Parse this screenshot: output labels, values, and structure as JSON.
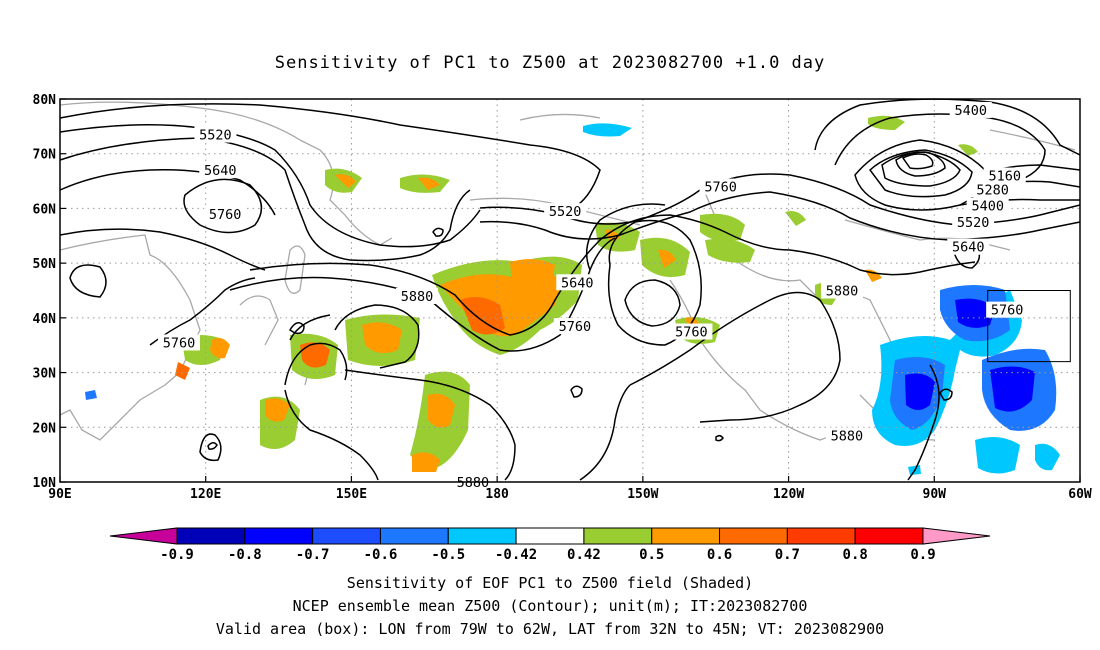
{
  "title": "Sensitivity of PC1 to Z500 at 2023082700 +1.0 day",
  "map": {
    "lon_range": [
      90,
      300
    ],
    "lat_range": [
      10,
      80
    ],
    "lat_ticks": [
      {
        "value": 80,
        "label": "80N"
      },
      {
        "value": 70,
        "label": "70N"
      },
      {
        "value": 60,
        "label": "60N"
      },
      {
        "value": 50,
        "label": "50N"
      },
      {
        "value": 40,
        "label": "40N"
      },
      {
        "value": 30,
        "label": "30N"
      },
      {
        "value": 20,
        "label": "20N"
      },
      {
        "value": 10,
        "label": "10N"
      }
    ],
    "lon_ticks": [
      {
        "value": 90,
        "label": "90E"
      },
      {
        "value": 120,
        "label": "120E"
      },
      {
        "value": 150,
        "label": "150E"
      },
      {
        "value": 180,
        "label": "180"
      },
      {
        "value": 210,
        "label": "150W"
      },
      {
        "value": 240,
        "label": "120W"
      },
      {
        "value": 270,
        "label": "90W"
      },
      {
        "value": 300,
        "label": "60W"
      }
    ],
    "gridlines": "dotted",
    "valid_box": {
      "lon": [
        281,
        298
      ],
      "lat": [
        32,
        45
      ]
    },
    "contour_labels": [
      {
        "text": "5520",
        "lon": 122,
        "lat": 73.5
      },
      {
        "text": "5640",
        "lon": 123,
        "lat": 67
      },
      {
        "text": "5760",
        "lon": 124,
        "lat": 59
      },
      {
        "text": "5520",
        "lon": 194,
        "lat": 59.5
      },
      {
        "text": "5760",
        "lon": 226,
        "lat": 64
      },
      {
        "text": "5400",
        "lon": 277.5,
        "lat": 78
      },
      {
        "text": "5160",
        "lon": 284.5,
        "lat": 66
      },
      {
        "text": "5280",
        "lon": 282,
        "lat": 63.5
      },
      {
        "text": "5400",
        "lon": 281,
        "lat": 60.5
      },
      {
        "text": "5520",
        "lon": 278,
        "lat": 57.5
      },
      {
        "text": "5640",
        "lon": 277,
        "lat": 53
      },
      {
        "text": "5640",
        "lon": 196.5,
        "lat": 46.5
      },
      {
        "text": "5880",
        "lon": 163.5,
        "lat": 44
      },
      {
        "text": "5760",
        "lon": 196,
        "lat": 38.5
      },
      {
        "text": "5760",
        "lon": 220,
        "lat": 37.5
      },
      {
        "text": "5880",
        "lon": 251,
        "lat": 45
      },
      {
        "text": "5760",
        "lon": 114.5,
        "lat": 35.5
      },
      {
        "text": "5760",
        "lon": 285,
        "lat": 41.5
      },
      {
        "text": "5880",
        "lon": 252,
        "lat": 18.5
      },
      {
        "text": "5880",
        "lon": 175,
        "lat": 10
      }
    ]
  },
  "colorbar": {
    "colors": [
      "#c8009a",
      "#0000b8",
      "#0000ff",
      "#1e4cff",
      "#1e78ff",
      "#00c8ff",
      "#ffffff",
      "#9acd32",
      "#ff9a00",
      "#ff6a00",
      "#ff3c00",
      "#ff0000",
      "#ff9ac8"
    ],
    "labels": [
      "-0.9",
      "-0.8",
      "-0.7",
      "-0.6",
      "-0.5",
      "-0.42",
      "0.42",
      "0.5",
      "0.6",
      "0.7",
      "0.8",
      "0.9"
    ]
  },
  "footer": {
    "line1": "Sensitivity of EOF PC1 to Z500 field (Shaded)",
    "line2": "NCEP ensemble mean Z500 (Contour); unit(m); IT:2023082700",
    "line3": "Valid area (box): LON from 79W to 62W, LAT from 32N to 45N; VT: 2023082900"
  }
}
